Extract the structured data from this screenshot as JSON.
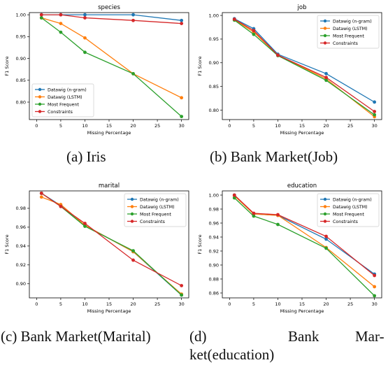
{
  "colors": {
    "ngram": "#1f77b4",
    "lstm": "#ff7f0e",
    "mostfreq": "#2ca02c",
    "constraints": "#d62728"
  },
  "captions": {
    "a": "(a) Iris",
    "b": "(b) Bank Market(Job)",
    "c": "(c) Bank Market(Marital)",
    "d_line1": "(d)",
    "d_word1": "Bank",
    "d_word2": "Mar-",
    "d_line2": "ket(education)"
  },
  "chart_data": [
    {
      "type": "line",
      "title": "species",
      "xlabel": "Missing Percentage",
      "ylabel": "F1 Score",
      "x": [
        1,
        5,
        10,
        20,
        30
      ],
      "xticks": [
        0,
        5,
        10,
        15,
        20,
        25,
        30
      ],
      "yticks": [
        "0.80",
        "0.85",
        "0.90",
        "0.95",
        "1.00"
      ],
      "ylim": [
        0.76,
        1.005
      ],
      "legend_position": "lower-left",
      "series": [
        {
          "name": "Datawig (n-gram)",
          "color_key": "ngram",
          "values": [
            1.0,
            1.0,
            1.0,
            1.0,
            0.987
          ]
        },
        {
          "name": "Datawig (LSTM)",
          "color_key": "lstm",
          "values": [
            0.993,
            0.98,
            0.947,
            0.865,
            0.81
          ]
        },
        {
          "name": "Most Frequent",
          "color_key": "mostfreq",
          "values": [
            0.993,
            0.96,
            0.914,
            0.865,
            0.767
          ]
        },
        {
          "name": "Constraints",
          "color_key": "constraints",
          "values": [
            1.0,
            1.0,
            0.993,
            0.987,
            0.98
          ]
        }
      ]
    },
    {
      "type": "line",
      "title": "job",
      "xlabel": "Missing Percentage",
      "ylabel": "F1 Score",
      "x": [
        1,
        5,
        10,
        20,
        30
      ],
      "xticks": [
        0,
        5,
        10,
        15,
        20,
        25,
        30
      ],
      "yticks": [
        "0.80",
        "0.85",
        "0.90",
        "0.95",
        "1.00"
      ],
      "ylim": [
        0.78,
        1.006
      ],
      "legend_position": "top-right",
      "series": [
        {
          "name": "Datawig (n-gram)",
          "color_key": "ngram",
          "values": [
            0.993,
            0.972,
            0.918,
            0.877,
            0.817
          ]
        },
        {
          "name": "Datawig (LSTM)",
          "color_key": "lstm",
          "values": [
            0.991,
            0.965,
            0.916,
            0.866,
            0.786
          ]
        },
        {
          "name": "Most Frequent",
          "color_key": "mostfreq",
          "values": [
            0.99,
            0.96,
            0.915,
            0.863,
            0.79
          ]
        },
        {
          "name": "Constraints",
          "color_key": "constraints",
          "values": [
            0.992,
            0.968,
            0.916,
            0.869,
            0.797
          ]
        }
      ]
    },
    {
      "type": "line",
      "title": "marital",
      "xlabel": "Missing Percentage",
      "ylabel": "F1 Score",
      "x": [
        1,
        5,
        10,
        20,
        30
      ],
      "xticks": [
        0,
        5,
        10,
        15,
        20,
        25,
        30
      ],
      "yticks": [
        "0.90",
        "0.92",
        "0.94",
        "0.96",
        "0.98"
      ],
      "ylim": [
        0.885,
        0.9985
      ],
      "legend_position": "top-right",
      "series": [
        {
          "name": "Datawig (n-gram)",
          "color_key": "ngram",
          "values": [
            0.996,
            0.983,
            0.962,
            0.934,
            0.888
          ]
        },
        {
          "name": "Datawig (LSTM)",
          "color_key": "lstm",
          "values": [
            0.992,
            0.984,
            0.962,
            0.934,
            0.889
          ]
        },
        {
          "name": "Most Frequent",
          "color_key": "mostfreq",
          "values": [
            0.996,
            0.982,
            0.961,
            0.935,
            0.888
          ]
        },
        {
          "name": "Constraints",
          "color_key": "constraints",
          "values": [
            0.996,
            0.982,
            0.964,
            0.925,
            0.898
          ]
        }
      ]
    },
    {
      "type": "line",
      "title": "education",
      "xlabel": "Missing Percentage",
      "ylabel": "F1 Score",
      "x": [
        1,
        5,
        10,
        20,
        30
      ],
      "xticks": [
        0,
        5,
        10,
        15,
        20,
        25,
        30
      ],
      "yticks": [
        "0.86",
        "0.88",
        "0.90",
        "0.92",
        "0.94",
        "0.96",
        "0.98",
        "1.00"
      ],
      "ylim": [
        0.853,
        1.006
      ],
      "legend_position": "top-right",
      "series": [
        {
          "name": "Datawig (n-gram)",
          "color_key": "ngram",
          "values": [
            1.0,
            0.973,
            0.971,
            0.937,
            0.887
          ]
        },
        {
          "name": "Datawig (LSTM)",
          "color_key": "lstm",
          "values": [
            0.999,
            0.973,
            0.971,
            0.925,
            0.869
          ]
        },
        {
          "name": "Most Frequent",
          "color_key": "mostfreq",
          "values": [
            0.996,
            0.97,
            0.958,
            0.924,
            0.856
          ]
        },
        {
          "name": "Constraints",
          "color_key": "constraints",
          "values": [
            1.0,
            0.974,
            0.972,
            0.941,
            0.885
          ]
        }
      ]
    }
  ]
}
